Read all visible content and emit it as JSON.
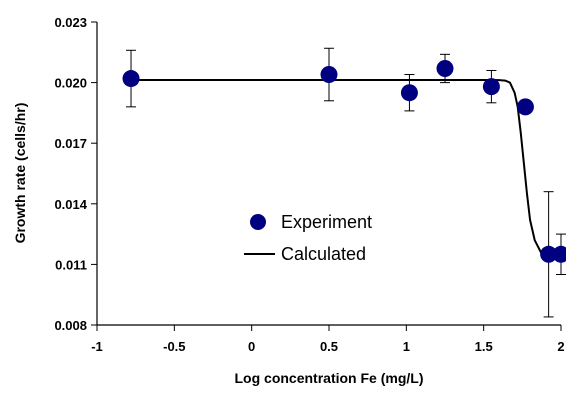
{
  "chart_data": {
    "type": "scatter",
    "title": "",
    "xlabel": "Log concentration Fe (mg/L)",
    "ylabel": "Growth rate (cells/hr)",
    "xlim": [
      -1,
      2
    ],
    "ylim": [
      0.008,
      0.023
    ],
    "x_ticks": [
      -1,
      -0.5,
      0,
      0.5,
      1,
      1.5,
      2
    ],
    "x_tick_labels": [
      "-1",
      "-0.5",
      "0",
      "0.5",
      "1",
      "1.5",
      "2"
    ],
    "y_ticks": [
      0.008,
      0.011,
      0.014,
      0.017,
      0.02,
      0.023
    ],
    "y_tick_labels": [
      "0.008",
      "0.011",
      "0.014",
      "0.017",
      "0.020",
      "0.023"
    ],
    "grid": false,
    "legend_position": "center",
    "series": [
      {
        "name": "Experiment",
        "kind": "scatter",
        "color": "#000080",
        "points": [
          {
            "x": -0.78,
            "y": 0.0202,
            "err": 0.0014
          },
          {
            "x": 0.5,
            "y": 0.0204,
            "err": 0.0013
          },
          {
            "x": 1.02,
            "y": 0.0195,
            "err": 0.0009
          },
          {
            "x": 1.25,
            "y": 0.0207,
            "err": 0.0007
          },
          {
            "x": 1.55,
            "y": 0.0198,
            "err": 0.0008
          },
          {
            "x": 1.77,
            "y": 0.0188,
            "err": 0.0
          },
          {
            "x": 1.92,
            "y": 0.0115,
            "err": 0.0031
          },
          {
            "x": 2.0,
            "y": 0.0115,
            "err": 0.001
          }
        ]
      },
      {
        "name": "Calculated",
        "kind": "line",
        "color": "#000000",
        "points": [
          {
            "x": -0.78,
            "y": 0.02013
          },
          {
            "x": 1.55,
            "y": 0.02013
          },
          {
            "x": 1.6,
            "y": 0.02012
          },
          {
            "x": 1.64,
            "y": 0.0201
          },
          {
            "x": 1.67,
            "y": 0.02
          },
          {
            "x": 1.7,
            "y": 0.0195
          },
          {
            "x": 1.72,
            "y": 0.0188
          },
          {
            "x": 1.74,
            "y": 0.0175
          },
          {
            "x": 1.76,
            "y": 0.016
          },
          {
            "x": 1.78,
            "y": 0.0145
          },
          {
            "x": 1.8,
            "y": 0.0132
          },
          {
            "x": 1.83,
            "y": 0.0122
          },
          {
            "x": 1.87,
            "y": 0.0116
          },
          {
            "x": 1.92,
            "y": 0.01145
          },
          {
            "x": 2.0,
            "y": 0.01142
          }
        ]
      }
    ]
  }
}
